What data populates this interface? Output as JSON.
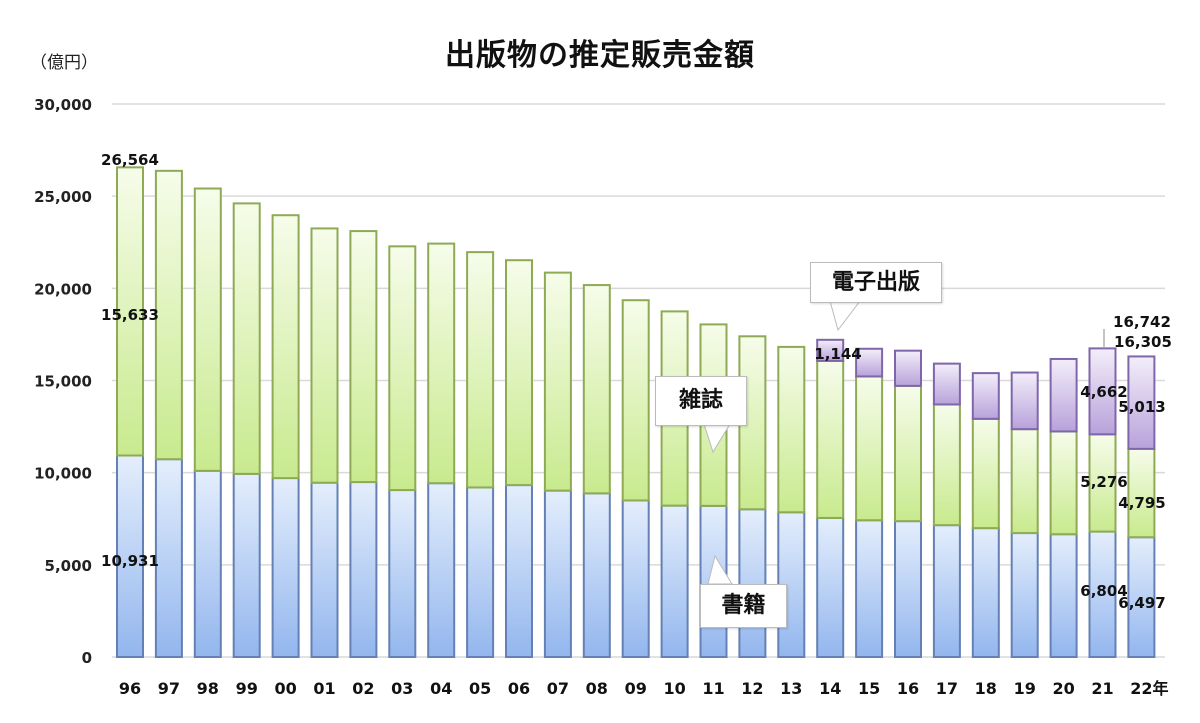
{
  "chart_data": {
    "type": "bar",
    "stacked": true,
    "title": "出版物の推定販売金額",
    "ylabel": "（億円）",
    "x_suffix": "年",
    "categories": [
      "96",
      "97",
      "98",
      "99",
      "00",
      "01",
      "02",
      "03",
      "04",
      "05",
      "06",
      "07",
      "08",
      "09",
      "10",
      "11",
      "12",
      "13",
      "14",
      "15",
      "16",
      "17",
      "18",
      "19",
      "20",
      "21",
      "22"
    ],
    "ylim": [
      0,
      30000
    ],
    "yticks": [
      0,
      5000,
      10000,
      15000,
      20000,
      25000,
      30000
    ],
    "ytick_labels": [
      "0",
      "5,000",
      "10,000",
      "15,000",
      "20,000",
      "25,000",
      "30,000"
    ],
    "grid": true,
    "series": [
      {
        "name": "書籍",
        "color": "#a9c6f2",
        "values": [
          10931,
          10730,
          10100,
          9936,
          9706,
          9456,
          9490,
          9056,
          9429,
          9197,
          9326,
          9026,
          8878,
          8492,
          8213,
          8199,
          8013,
          7851,
          7544,
          7419,
          7370,
          7152,
          6991,
          6723,
          6661,
          6804,
          6497
        ]
      },
      {
        "name": "雑誌",
        "color": "#d3efa3",
        "values": [
          15633,
          15644,
          15315,
          14672,
          14261,
          13794,
          13616,
          13222,
          12998,
          12767,
          12200,
          11827,
          11299,
          10864,
          10536,
          9844,
          9385,
          8972,
          8520,
          7801,
          7339,
          6548,
          5930,
          5637,
          5576,
          5276,
          4795
        ]
      },
      {
        "name": "電子出版",
        "color": "#cbb9e6",
        "values": [
          0,
          0,
          0,
          0,
          0,
          0,
          0,
          0,
          0,
          0,
          0,
          0,
          0,
          0,
          0,
          0,
          0,
          0,
          1144,
          1502,
          1909,
          2215,
          2479,
          3072,
          3931,
          4662,
          5013
        ]
      }
    ],
    "data_labels": [
      {
        "category": "96",
        "series": "total",
        "text": "26,564"
      },
      {
        "category": "96",
        "series": "雑誌",
        "text": "15,633"
      },
      {
        "category": "96",
        "series": "書籍",
        "text": "10,931"
      },
      {
        "category": "14",
        "series": "電子出版",
        "text": "1,144"
      },
      {
        "category": "21",
        "series": "total",
        "text": "16,742"
      },
      {
        "category": "22",
        "series": "total",
        "text": "16,305"
      },
      {
        "category": "21",
        "series": "電子出版",
        "text": "4,662"
      },
      {
        "category": "22",
        "series": "電子出版",
        "text": "5,013"
      },
      {
        "category": "21",
        "series": "雑誌",
        "text": "5,276"
      },
      {
        "category": "22",
        "series": "雑誌",
        "text": "4,795"
      },
      {
        "category": "21",
        "series": "書籍",
        "text": "6,804"
      },
      {
        "category": "22",
        "series": "書籍",
        "text": "6,497"
      }
    ],
    "annotations": [
      "電子出版",
      "雑誌",
      "書籍"
    ]
  }
}
